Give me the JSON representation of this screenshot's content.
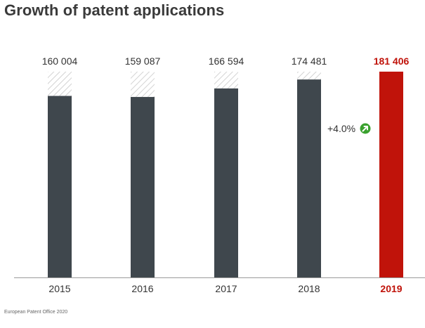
{
  "title": "Growth of patent applications",
  "source": "European Patent Office 2020",
  "colors": {
    "bar": "#3f474d",
    "highlight": "#c0130a",
    "hatch": "#c9c9c9",
    "axis": "#9a9a9a",
    "growth_icon": "#3aa12e"
  },
  "growth": {
    "label": "+4.0%",
    "icon": "arrow-up-right-icon"
  },
  "chart_data": {
    "type": "bar",
    "title": "Growth of patent applications",
    "categories": [
      "2015",
      "2016",
      "2017",
      "2018",
      "2019"
    ],
    "value_labels": [
      "160 004",
      "159 087",
      "166 594",
      "174 481",
      "181 406"
    ],
    "series": [
      {
        "values": [
          160004,
          159087,
          166594,
          174481,
          181406
        ]
      }
    ],
    "highlight_index": 4,
    "hatch_to_value": 181406,
    "ylim": [
      0,
      181406
    ],
    "grid": false,
    "annotations": [
      {
        "text": "+4.0%",
        "between": [
          "2018",
          "2019"
        ]
      }
    ]
  }
}
